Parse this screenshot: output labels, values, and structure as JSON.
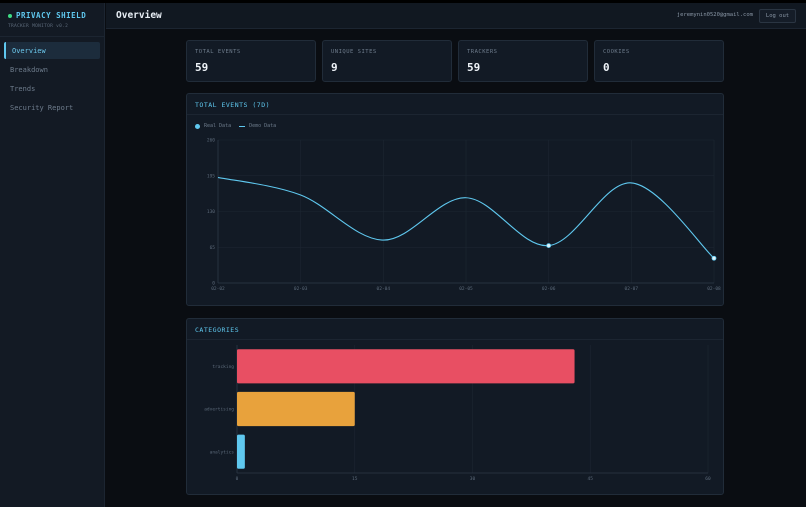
{
  "brand": {
    "name": "PRIVACY SHIELD",
    "subtitle": "TRACKER MONITOR v0.2",
    "status_color": "#3ddc84"
  },
  "sidebar": {
    "items": [
      {
        "label": "Overview",
        "active": true
      },
      {
        "label": "Breakdown",
        "active": false
      },
      {
        "label": "Trends",
        "active": false
      },
      {
        "label": "Security Report",
        "active": false
      }
    ]
  },
  "header": {
    "title": "Overview",
    "user_email": "jeremynin0520@gmail.com",
    "logout_label": "Log out"
  },
  "stats": [
    {
      "label": "TOTAL EVENTS",
      "value": "59"
    },
    {
      "label": "UNIQUE SITES",
      "value": "9"
    },
    {
      "label": "TRACKERS",
      "value": "59"
    },
    {
      "label": "COOKIES",
      "value": "0"
    }
  ],
  "line_panel": {
    "title": "TOTAL EVENTS (7D)",
    "legend_real": "Real Data",
    "legend_demo": "Demo Data"
  },
  "bar_panel": {
    "title": "CATEGORIES"
  },
  "colors": {
    "accent": "#5fc8ef",
    "tracking": "#e84f63",
    "advertising": "#e8a23c",
    "analytics": "#5fc8ef"
  },
  "chart_data": [
    {
      "type": "line",
      "title": "TOTAL EVENTS (7D)",
      "x": [
        "02-02",
        "02-03",
        "02-04",
        "02-05",
        "02-06",
        "02-07",
        "02-08"
      ],
      "series": [
        {
          "name": "Demo Data",
          "values": [
            192,
            160,
            78,
            155,
            68,
            182,
            45
          ]
        },
        {
          "name": "Real Data",
          "values": [
            null,
            null,
            null,
            null,
            68,
            null,
            45
          ]
        }
      ],
      "ylim": [
        0,
        260
      ],
      "yticks": [
        "0",
        "65",
        "130",
        "195",
        "260"
      ],
      "grid": true,
      "legend": "top-left"
    },
    {
      "type": "bar",
      "orientation": "horizontal",
      "title": "CATEGORIES",
      "categories": [
        "tracking",
        "advertising",
        "analytics"
      ],
      "values": [
        43,
        15,
        1
      ],
      "xlim": [
        0,
        60
      ],
      "xticks": [
        "0",
        "15",
        "30",
        "45",
        "60"
      ],
      "grid": true
    }
  ]
}
